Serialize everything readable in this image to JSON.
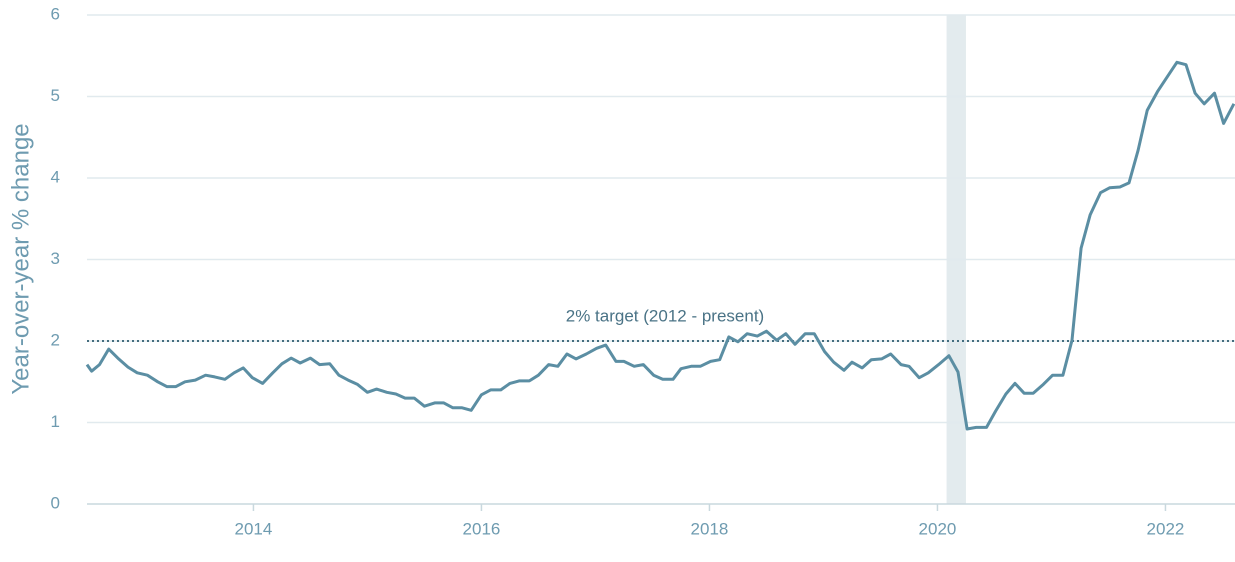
{
  "chart_data": {
    "type": "line",
    "y_label": "Year-over-year % change",
    "x": [
      2012.54,
      2012.58,
      2012.65,
      2012.73,
      2012.81,
      2012.9,
      2012.98,
      2013.07,
      2013.16,
      2013.24,
      2013.32,
      2013.4,
      2013.49,
      2013.58,
      2013.66,
      2013.75,
      2013.83,
      2013.91,
      2013.99,
      2014.08,
      2014.17,
      2014.25,
      2014.33,
      2014.41,
      2014.5,
      2014.58,
      2014.67,
      2014.75,
      2014.83,
      2014.91,
      2015.0,
      2015.08,
      2015.17,
      2015.25,
      2015.33,
      2015.41,
      2015.5,
      2015.59,
      2015.67,
      2015.75,
      2015.83,
      2015.91,
      2016.0,
      2016.08,
      2016.17,
      2016.25,
      2016.33,
      2016.42,
      2016.5,
      2016.59,
      2016.67,
      2016.75,
      2016.83,
      2016.92,
      2017.01,
      2017.09,
      2017.18,
      2017.25,
      2017.34,
      2017.42,
      2017.51,
      2017.59,
      2017.68,
      2017.75,
      2017.84,
      2017.92,
      2018.01,
      2018.09,
      2018.17,
      2018.25,
      2018.33,
      2018.42,
      2018.5,
      2018.59,
      2018.67,
      2018.75,
      2018.84,
      2018.92,
      2019.01,
      2019.09,
      2019.18,
      2019.25,
      2019.34,
      2019.42,
      2019.51,
      2019.59,
      2019.68,
      2019.75,
      2019.84,
      2019.92,
      2020.01,
      2020.1,
      2020.18,
      2020.26,
      2020.34,
      2020.43,
      2020.51,
      2020.6,
      2020.68,
      2020.76,
      2020.84,
      2020.93,
      2021.01,
      2021.1,
      2021.18,
      2021.26,
      2021.34,
      2021.43,
      2021.51,
      2021.6,
      2021.68,
      2021.76,
      2021.84,
      2021.93,
      2022.01,
      2022.1,
      2022.18,
      2022.26,
      2022.34,
      2022.43,
      2022.51,
      2022.6
    ],
    "series": [
      {
        "color": "#5b8ea3",
        "values": [
          1.71,
          1.63,
          1.71,
          1.9,
          1.79,
          1.68,
          1.61,
          1.58,
          1.5,
          1.44,
          1.44,
          1.5,
          1.52,
          1.58,
          1.56,
          1.53,
          1.61,
          1.67,
          1.55,
          1.48,
          1.61,
          1.72,
          1.79,
          1.73,
          1.79,
          1.71,
          1.72,
          1.58,
          1.52,
          1.47,
          1.37,
          1.41,
          1.37,
          1.35,
          1.3,
          1.3,
          1.2,
          1.24,
          1.24,
          1.18,
          1.18,
          1.15,
          1.34,
          1.4,
          1.4,
          1.48,
          1.51,
          1.51,
          1.58,
          1.71,
          1.69,
          1.84,
          1.78,
          1.84,
          1.91,
          1.95,
          1.75,
          1.75,
          1.69,
          1.71,
          1.58,
          1.53,
          1.53,
          1.66,
          1.69,
          1.69,
          1.75,
          1.77,
          2.05,
          1.99,
          2.09,
          2.06,
          2.12,
          2.01,
          2.09,
          1.96,
          2.09,
          2.09,
          1.87,
          1.74,
          1.64,
          1.74,
          1.67,
          1.77,
          1.78,
          1.84,
          1.71,
          1.69,
          1.55,
          1.61,
          1.71,
          1.82,
          1.62,
          0.92,
          0.94,
          0.94,
          1.14,
          1.35,
          1.48,
          1.36,
          1.36,
          1.47,
          1.58,
          1.58,
          2.01,
          3.14,
          3.55,
          3.82,
          3.88,
          3.89,
          3.94,
          4.34,
          4.83,
          5.06,
          5.23,
          5.42,
          5.39,
          5.04,
          4.91,
          5.04,
          4.67,
          4.91
        ]
      }
    ],
    "xlim": [
      2012.54,
      2022.61
    ],
    "xticks": [
      2014,
      2016,
      2018,
      2020,
      2022
    ],
    "ylim": [
      0,
      6
    ],
    "yticks": [
      0,
      1,
      2,
      3,
      4,
      5,
      6
    ],
    "grid": true,
    "reference_line": {
      "value": 2,
      "label": "2% target (2012 - present)",
      "color": "#2b5a6e"
    },
    "recession": {
      "start": 2020.08,
      "end": 2020.25,
      "color": "#e3ebee"
    }
  }
}
